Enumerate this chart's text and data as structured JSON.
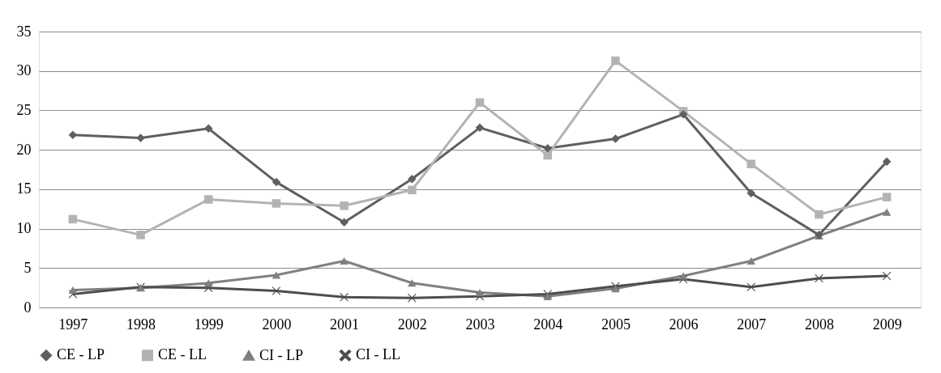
{
  "chart_data": {
    "type": "line",
    "categories": [
      "1997",
      "1998",
      "1999",
      "2000",
      "2001",
      "2002",
      "2003",
      "2004",
      "2005",
      "2006",
      "2007",
      "2008",
      "2009"
    ],
    "series": [
      {
        "name": "CE - LP",
        "color": "#5f5f5f",
        "marker": "diamond",
        "values": [
          21.9,
          21.5,
          22.7,
          15.9,
          10.8,
          16.3,
          22.8,
          20.2,
          21.4,
          24.5,
          14.5,
          9.2,
          18.5
        ]
      },
      {
        "name": "CE - LL",
        "color": "#b3b3b3",
        "marker": "square",
        "values": [
          11.2,
          9.2,
          13.7,
          13.2,
          12.9,
          14.9,
          26.0,
          19.3,
          31.3,
          24.9,
          18.2,
          11.8,
          14.0
        ]
      },
      {
        "name": "CI - LP",
        "color": "#808080",
        "marker": "triangle",
        "values": [
          2.2,
          2.5,
          3.1,
          4.1,
          5.9,
          3.1,
          1.9,
          1.4,
          2.4,
          4.0,
          5.9,
          9.1,
          12.1
        ]
      },
      {
        "name": "CI - LL",
        "color": "#4d4d4d",
        "marker": "cross",
        "values": [
          1.7,
          2.6,
          2.5,
          2.1,
          1.3,
          1.2,
          1.4,
          1.7,
          2.7,
          3.6,
          2.6,
          3.7,
          4.0
        ]
      }
    ],
    "ylim": [
      0,
      35
    ],
    "yticks": [
      0,
      5,
      10,
      15,
      20,
      25,
      30,
      35
    ],
    "grid": "y",
    "legend": "bottom",
    "line_style": "solid"
  }
}
